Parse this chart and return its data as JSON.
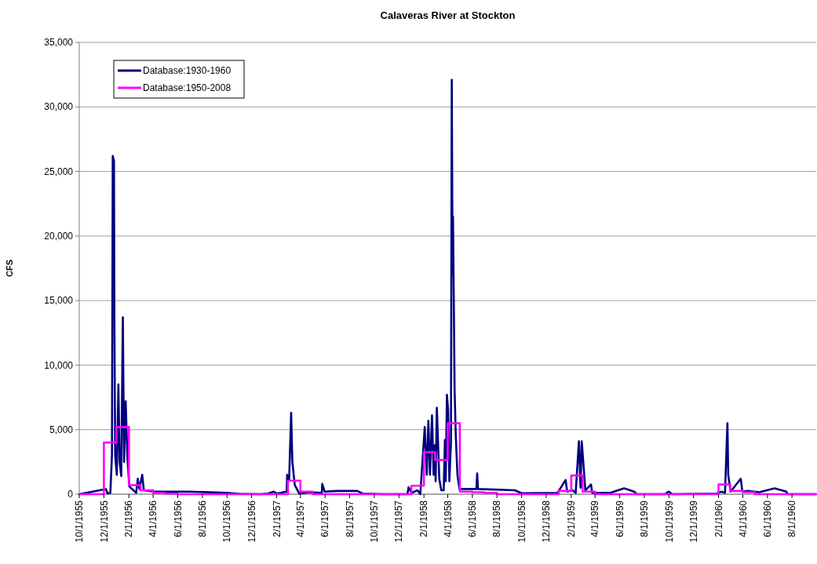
{
  "chart_data": {
    "type": "line",
    "title": "Calaveras River at Stockton",
    "ylabel": "CFS",
    "xlim": [
      "1955-10-01",
      "1960-09-30"
    ],
    "ylim": [
      0,
      35000
    ],
    "yticks": [
      {
        "value": 0,
        "label": "0"
      },
      {
        "value": 5000,
        "label": "5,000"
      },
      {
        "value": 10000,
        "label": "10,000"
      },
      {
        "value": 15000,
        "label": "15,000"
      },
      {
        "value": 20000,
        "label": "20,000"
      },
      {
        "value": 25000,
        "label": "25,000"
      },
      {
        "value": 30000,
        "label": "30,000"
      },
      {
        "value": 35000,
        "label": "35,000"
      }
    ],
    "xticks": [
      {
        "value": "1955-10-01",
        "label": "10/1/1955"
      },
      {
        "value": "1955-12-01",
        "label": "12/1/1955"
      },
      {
        "value": "1956-02-01",
        "label": "2/1/1956"
      },
      {
        "value": "1956-04-01",
        "label": "4/1/1956"
      },
      {
        "value": "1956-06-01",
        "label": "6/1/1956"
      },
      {
        "value": "1956-08-01",
        "label": "8/1/1956"
      },
      {
        "value": "1956-10-01",
        "label": "10/1/1956"
      },
      {
        "value": "1956-12-01",
        "label": "12/1/1956"
      },
      {
        "value": "1957-02-01",
        "label": "2/1/1957"
      },
      {
        "value": "1957-04-01",
        "label": "4/1/1957"
      },
      {
        "value": "1957-06-01",
        "label": "6/1/1957"
      },
      {
        "value": "1957-08-01",
        "label": "8/1/1957"
      },
      {
        "value": "1957-10-01",
        "label": "10/1/1957"
      },
      {
        "value": "1957-12-01",
        "label": "12/1/1957"
      },
      {
        "value": "1958-02-01",
        "label": "2/1/1958"
      },
      {
        "value": "1958-04-01",
        "label": "4/1/1958"
      },
      {
        "value": "1958-06-01",
        "label": "6/1/1958"
      },
      {
        "value": "1958-08-01",
        "label": "8/1/1958"
      },
      {
        "value": "1958-10-01",
        "label": "10/1/1958"
      },
      {
        "value": "1958-12-01",
        "label": "12/1/1958"
      },
      {
        "value": "1959-02-01",
        "label": "2/1/1959"
      },
      {
        "value": "1959-04-01",
        "label": "4/1/1959"
      },
      {
        "value": "1959-06-01",
        "label": "6/1/1959"
      },
      {
        "value": "1959-08-01",
        "label": "8/1/1959"
      },
      {
        "value": "1959-10-01",
        "label": "10/1/1959"
      },
      {
        "value": "1959-12-01",
        "label": "12/1/1959"
      },
      {
        "value": "1960-02-01",
        "label": "2/1/1960"
      },
      {
        "value": "1960-04-01",
        "label": "4/1/1960"
      },
      {
        "value": "1960-06-01",
        "label": "6/1/1960"
      },
      {
        "value": "1960-08-01",
        "label": "8/1/1960"
      }
    ],
    "grid": "y",
    "legend": "top left",
    "marker": "none",
    "line_style": "solid",
    "series": [
      {
        "name": "Database:1930-1960",
        "color": "#000080",
        "x": [
          "1955-10-01",
          "1955-12-06",
          "1955-12-10",
          "1955-12-17",
          "1955-12-21",
          "1955-12-23",
          "1955-12-26",
          "1955-12-27",
          "1955-12-29",
          "1956-01-02",
          "1956-01-06",
          "1956-01-09",
          "1956-01-13",
          "1956-01-17",
          "1956-01-20",
          "1956-01-24",
          "1956-01-28",
          "1956-02-02",
          "1956-02-09",
          "1956-02-19",
          "1956-02-23",
          "1956-02-27",
          "1956-03-05",
          "1956-03-09",
          "1956-04-03",
          "1956-07-01",
          "1956-09-30",
          "1956-11-01",
          "1956-12-24",
          "1957-01-10",
          "1957-01-25",
          "1957-02-01",
          "1957-02-26",
          "1957-02-27",
          "1957-03-04",
          "1957-03-09",
          "1957-03-12",
          "1957-03-18",
          "1957-03-29",
          "1957-04-23",
          "1957-05-24",
          "1957-05-25",
          "1957-05-31",
          "1957-06-30",
          "1957-08-20",
          "1957-09-02",
          "1957-10-23",
          "1957-12-22",
          "1957-12-25",
          "1958-01-01",
          "1958-01-16",
          "1958-01-23",
          "1958-02-03",
          "1958-02-08",
          "1958-02-12",
          "1958-02-16",
          "1958-02-21",
          "1958-02-25",
          "1958-02-28",
          "1958-03-02",
          "1958-03-05",
          "1958-03-11",
          "1958-03-16",
          "1958-03-22",
          "1958-03-25",
          "1958-03-27",
          "1958-03-30",
          "1958-04-02",
          "1958-04-05",
          "1958-04-09",
          "1958-04-11",
          "1958-04-13",
          "1958-04-14",
          "1958-04-16",
          "1958-04-18",
          "1958-04-21",
          "1958-04-25",
          "1958-04-30",
          "1958-05-28",
          "1958-06-11",
          "1958-06-13",
          "1958-06-15",
          "1958-09-14",
          "1958-10-01",
          "1958-12-29",
          "1959-01-18",
          "1959-01-22",
          "1959-02-04",
          "1959-02-12",
          "1959-02-20",
          "1959-02-24",
          "1959-02-27",
          "1959-03-04",
          "1959-03-08",
          "1959-03-22",
          "1959-03-25",
          "1959-05-09",
          "1959-06-12",
          "1959-07-07",
          "1959-07-13",
          "1959-09-21",
          "1959-09-30",
          "1959-10-10",
          "1960-01-28",
          "1960-02-08",
          "1960-02-17",
          "1960-02-23",
          "1960-02-25",
          "1960-03-02",
          "1960-03-27",
          "1960-03-31",
          "1960-04-13",
          "1960-05-12",
          "1960-06-19",
          "1960-07-18",
          "1960-07-21",
          "1960-09-30"
        ],
        "values": [
          0,
          400,
          50,
          100,
          3000,
          26200,
          25800,
          13700,
          3000,
          1500,
          8500,
          2500,
          1400,
          13700,
          2500,
          7200,
          3000,
          600,
          400,
          100,
          1200,
          400,
          1500,
          300,
          200,
          200,
          100,
          30,
          0,
          50,
          200,
          50,
          200,
          1500,
          1100,
          6300,
          2500,
          700,
          50,
          150,
          100,
          800,
          200,
          250,
          250,
          50,
          0,
          0,
          550,
          100,
          300,
          0,
          5200,
          1500,
          5700,
          1500,
          6100,
          1500,
          3800,
          1000,
          6700,
          1200,
          300,
          300,
          4200,
          1000,
          7700,
          6500,
          1000,
          4000,
          32100,
          17000,
          21500,
          15000,
          8000,
          4500,
          1500,
          400,
          400,
          400,
          1600,
          400,
          300,
          80,
          100,
          1100,
          200,
          300,
          100,
          4100,
          500,
          4100,
          2000,
          300,
          750,
          100,
          100,
          450,
          200,
          0,
          0,
          200,
          0,
          50,
          200,
          100,
          5500,
          1500,
          200,
          1200,
          200,
          250,
          150,
          450,
          200,
          0,
          0
        ]
      },
      {
        "name": "Database:1950-2008",
        "color": "#ff00ff",
        "type": "step",
        "x": [
          "1955-10-01",
          "1955-11-01",
          "1955-12-01",
          "1956-01-01",
          "1956-02-01",
          "1956-03-01",
          "1956-04-01",
          "1956-05-01",
          "1956-06-01",
          "1956-07-01",
          "1956-08-01",
          "1956-09-01",
          "1956-10-01",
          "1956-11-01",
          "1956-12-01",
          "1957-01-01",
          "1957-02-01",
          "1957-03-01",
          "1957-04-01",
          "1957-05-01",
          "1957-06-01",
          "1957-07-01",
          "1957-08-01",
          "1957-09-01",
          "1957-10-01",
          "1957-11-01",
          "1957-12-01",
          "1958-01-01",
          "1958-02-01",
          "1958-03-01",
          "1958-04-01",
          "1958-05-01",
          "1958-06-01",
          "1958-07-01",
          "1958-08-01",
          "1958-09-01",
          "1958-10-01",
          "1958-11-01",
          "1958-12-01",
          "1959-01-01",
          "1959-02-01",
          "1959-03-01",
          "1959-04-01",
          "1959-05-01",
          "1959-06-01",
          "1959-07-01",
          "1959-08-01",
          "1959-09-01",
          "1959-10-01",
          "1959-11-01",
          "1959-12-01",
          "1960-01-01",
          "1960-02-01",
          "1960-03-01",
          "1960-04-01",
          "1960-05-01",
          "1960-06-01",
          "1960-07-01",
          "1960-08-01",
          "1960-09-01",
          "1960-09-30"
        ],
        "values": [
          0,
          0,
          4000,
          5200,
          700,
          300,
          100,
          50,
          0,
          0,
          0,
          0,
          0,
          0,
          0,
          0,
          0,
          1050,
          200,
          0,
          0,
          0,
          0,
          0,
          0,
          0,
          0,
          650,
          3250,
          2650,
          5500,
          200,
          150,
          100,
          0,
          0,
          0,
          0,
          0,
          250,
          1450,
          200,
          0,
          0,
          0,
          0,
          0,
          0,
          0,
          0,
          0,
          0,
          750,
          250,
          150,
          0,
          0,
          0,
          0,
          0,
          0
        ]
      }
    ]
  }
}
